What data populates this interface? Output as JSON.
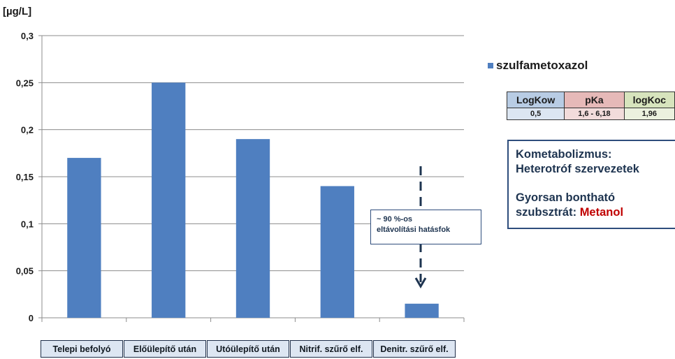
{
  "unit_label": "[µg/L]",
  "chart_data": {
    "type": "bar",
    "categories": [
      "Telepi befolyó",
      "Előülepítő után",
      "Utóülepítő után",
      "Nitrif. szűrő elf.",
      "Denitr. szűrő elf."
    ],
    "series": [
      {
        "name": "szulfametoxazol",
        "values": [
          0.17,
          0.25,
          0.19,
          0.14,
          0.015
        ]
      }
    ],
    "ylim": [
      0,
      0.3
    ],
    "yticks": [
      0,
      0.05,
      0.1,
      0.15,
      0.2,
      0.25,
      0.3
    ],
    "ytick_labels": [
      "0",
      "0,05",
      "0,1",
      "0,15",
      "0,2",
      "0,25",
      "0,3"
    ],
    "grid": true,
    "legend_position": "right",
    "bar_color": "#4f7fc0"
  },
  "legend": {
    "label": "szulfametoxazol",
    "color": "#4f7fc0"
  },
  "properties_table": {
    "headers": [
      {
        "label": "LogKow",
        "color": "#b8cce4"
      },
      {
        "label": "pKa",
        "color": "#e6b9b8"
      },
      {
        "label": "logKoc",
        "color": "#d7e4bd"
      }
    ],
    "values": [
      {
        "label": "0,5",
        "color": "#dce6f2"
      },
      {
        "label": "1,6 - 6,18",
        "color": "#f2dcdb"
      },
      {
        "label": "1,96",
        "color": "#ebf1de"
      }
    ]
  },
  "note_box": {
    "line1": "Kometabolizmus:",
    "line2": "Heterotróf szervezetek",
    "line3": "Gyorsan bontható",
    "line4_prefix": "szubsztrát: ",
    "line4_highlight": "Metanol",
    "highlight_color": "#c00000"
  },
  "callout": {
    "line1": "~ 90 %-os",
    "line2": "eltávolítási hatásfok"
  }
}
